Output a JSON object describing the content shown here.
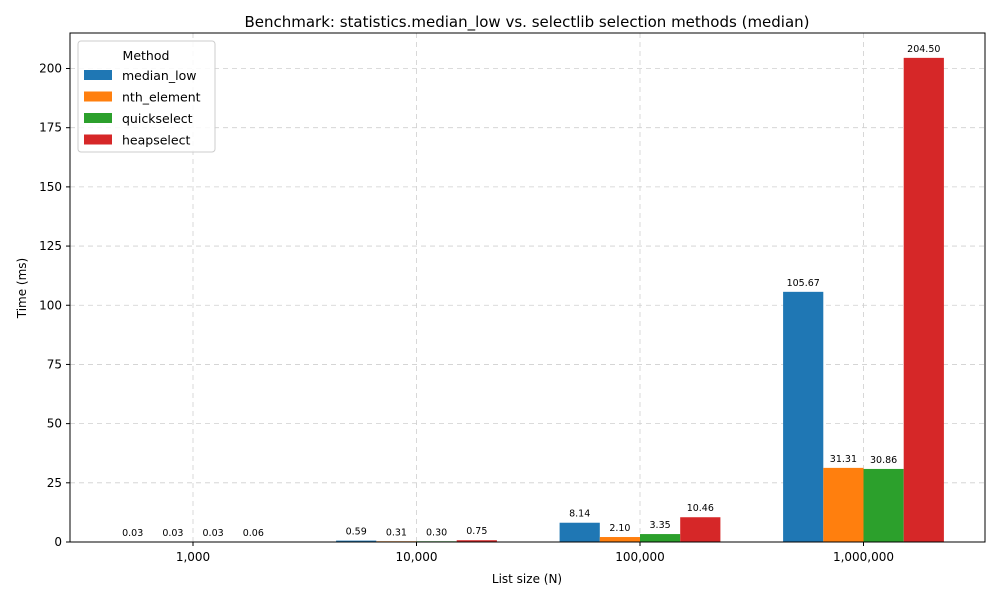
{
  "chart_data": {
    "type": "bar",
    "title": "Benchmark: statistics.median_low vs. selectlib selection methods (median)",
    "xlabel": "List size (N)",
    "ylabel": "Time (ms)",
    "categories": [
      "1,000",
      "10,000",
      "100,000",
      "1,000,000"
    ],
    "ylim": [
      0,
      215
    ],
    "yticks": [
      0,
      25,
      50,
      75,
      100,
      125,
      150,
      175,
      200
    ],
    "grid": true,
    "legend": {
      "title": "Method",
      "placement": "upper-left"
    },
    "series": [
      {
        "name": "median_low",
        "color": "#1f77b4",
        "values": [
          0.03,
          0.59,
          8.14,
          105.67
        ],
        "labels": [
          "0.03",
          "0.59",
          "8.14",
          "105.67"
        ]
      },
      {
        "name": "nth_element",
        "color": "#ff7f0e",
        "values": [
          0.03,
          0.31,
          2.1,
          31.31
        ],
        "labels": [
          "0.03",
          "0.31",
          "2.10",
          "31.31"
        ]
      },
      {
        "name": "quickselect",
        "color": "#2ca02c",
        "values": [
          0.03,
          0.3,
          3.35,
          30.86
        ],
        "labels": [
          "0.03",
          "0.30",
          "3.35",
          "30.86"
        ]
      },
      {
        "name": "heapselect",
        "color": "#d62728",
        "values": [
          0.06,
          0.75,
          10.46,
          204.5
        ],
        "labels": [
          "0.06",
          "0.75",
          "10.46",
          "204.50"
        ]
      }
    ]
  }
}
